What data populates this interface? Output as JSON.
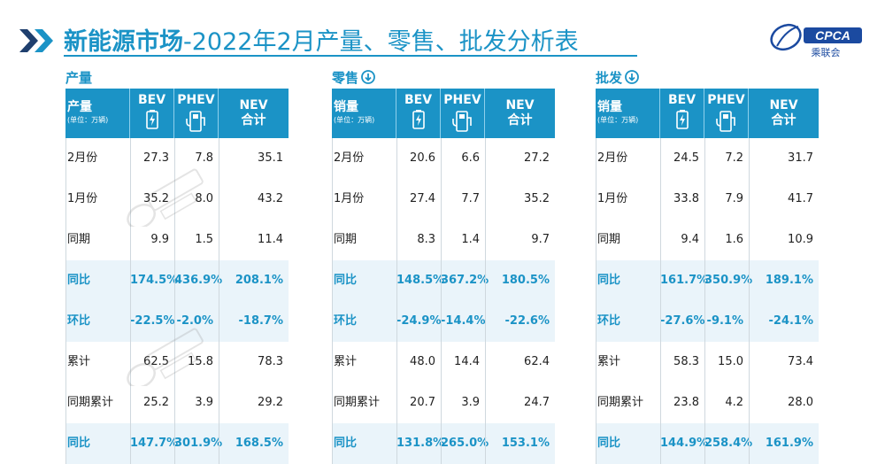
{
  "page": {
    "title_bold": "新能源市场",
    "title_rest": "-2022年2月产量、零售、批发分析表",
    "logo_text": "CPCA",
    "logo_sub": "乘联会",
    "colors": {
      "accent": "#1b93c6",
      "highlight_row": "#eaf4fa",
      "chevron": "#1f3f6e"
    }
  },
  "columns": {
    "bev": "BEV",
    "phev": "PHEV",
    "nev": "NEV",
    "nev_sub": "合计",
    "unit": "(单位：万辆)"
  },
  "sections": [
    {
      "label": "产量",
      "header_label": "产量",
      "has_arrow": false,
      "rows": [
        {
          "label": "2月份",
          "bev": "27.3",
          "phev": "7.8",
          "nev": "35.1",
          "highlight": false
        },
        {
          "label": "1月份",
          "bev": "35.2",
          "phev": "8.0",
          "nev": "43.2",
          "highlight": false
        },
        {
          "label": "同期",
          "bev": "9.9",
          "phev": "1.5",
          "nev": "11.4",
          "highlight": false
        },
        {
          "label": "同比",
          "bev": "174.5%",
          "phev": "436.9%",
          "nev": "208.1%",
          "highlight": true
        },
        {
          "label": "环比",
          "bev": "-22.5%",
          "phev": "-2.0%",
          "nev": "-18.7%",
          "highlight": true
        },
        {
          "label": "累计",
          "bev": "62.5",
          "phev": "15.8",
          "nev": "78.3",
          "highlight": false
        },
        {
          "label": "同期累计",
          "bev": "25.2",
          "phev": "3.9",
          "nev": "29.2",
          "highlight": false
        },
        {
          "label": "同比",
          "bev": "147.7%",
          "phev": "301.9%",
          "nev": "168.5%",
          "highlight": true
        }
      ]
    },
    {
      "label": "零售",
      "header_label": "销量",
      "has_arrow": true,
      "rows": [
        {
          "label": "2月份",
          "bev": "20.6",
          "phev": "6.6",
          "nev": "27.2",
          "highlight": false
        },
        {
          "label": "1月份",
          "bev": "27.4",
          "phev": "7.7",
          "nev": "35.2",
          "highlight": false
        },
        {
          "label": "同期",
          "bev": "8.3",
          "phev": "1.4",
          "nev": "9.7",
          "highlight": false
        },
        {
          "label": "同比",
          "bev": "148.5%",
          "phev": "367.2%",
          "nev": "180.5%",
          "highlight": true
        },
        {
          "label": "环比",
          "bev": "-24.9%",
          "phev": "-14.4%",
          "nev": "-22.6%",
          "highlight": true
        },
        {
          "label": "累计",
          "bev": "48.0",
          "phev": "14.4",
          "nev": "62.4",
          "highlight": false
        },
        {
          "label": "同期累计",
          "bev": "20.7",
          "phev": "3.9",
          "nev": "24.7",
          "highlight": false
        },
        {
          "label": "同比",
          "bev": "131.8%",
          "phev": "265.0%",
          "nev": "153.1%",
          "highlight": true
        }
      ]
    },
    {
      "label": "批发",
      "header_label": "销量",
      "has_arrow": true,
      "rows": [
        {
          "label": "2月份",
          "bev": "24.5",
          "phev": "7.2",
          "nev": "31.7",
          "highlight": false
        },
        {
          "label": "1月份",
          "bev": "33.8",
          "phev": "7.9",
          "nev": "41.7",
          "highlight": false
        },
        {
          "label": "同期",
          "bev": "9.4",
          "phev": "1.6",
          "nev": "10.9",
          "highlight": false
        },
        {
          "label": "同比",
          "bev": "161.7%",
          "phev": "350.9%",
          "nev": "189.1%",
          "highlight": true
        },
        {
          "label": "环比",
          "bev": "-27.6%",
          "phev": "-9.1%",
          "nev": "-24.1%",
          "highlight": true
        },
        {
          "label": "累计",
          "bev": "58.3",
          "phev": "15.0",
          "nev": "73.4",
          "highlight": false
        },
        {
          "label": "同期累计",
          "bev": "23.8",
          "phev": "4.2",
          "nev": "28.0",
          "highlight": false
        },
        {
          "label": "同比",
          "bev": "144.9%",
          "phev": "258.4%",
          "nev": "161.9%",
          "highlight": true
        }
      ]
    }
  ],
  "chart_data": [
    {
      "type": "table",
      "title": "产量",
      "columns": [
        "产量 (单位：万辆)",
        "BEV",
        "PHEV",
        "NEV 合计"
      ],
      "rows": [
        [
          "2月份",
          "27.3",
          "7.8",
          "35.1"
        ],
        [
          "1月份",
          "35.2",
          "8.0",
          "43.2"
        ],
        [
          "同期",
          "9.9",
          "1.5",
          "11.4"
        ],
        [
          "同比",
          "174.5%",
          "436.9%",
          "208.1%"
        ],
        [
          "环比",
          "-22.5%",
          "-2.0%",
          "-18.7%"
        ],
        [
          "累计",
          "62.5",
          "15.8",
          "78.3"
        ],
        [
          "同期累计",
          "25.2",
          "3.9",
          "29.2"
        ],
        [
          "同比",
          "147.7%",
          "301.9%",
          "168.5%"
        ]
      ]
    },
    {
      "type": "table",
      "title": "零售",
      "columns": [
        "销量 (单位：万辆)",
        "BEV",
        "PHEV",
        "NEV 合计"
      ],
      "rows": [
        [
          "2月份",
          "20.6",
          "6.6",
          "27.2"
        ],
        [
          "1月份",
          "27.4",
          "7.7",
          "35.2"
        ],
        [
          "同期",
          "8.3",
          "1.4",
          "9.7"
        ],
        [
          "同比",
          "148.5%",
          "367.2%",
          "180.5%"
        ],
        [
          "环比",
          "-24.9%",
          "-14.4%",
          "-22.6%"
        ],
        [
          "累计",
          "48.0",
          "14.4",
          "62.4"
        ],
        [
          "同期累计",
          "20.7",
          "3.9",
          "24.7"
        ],
        [
          "同比",
          "131.8%",
          "265.0%",
          "153.1%"
        ]
      ]
    },
    {
      "type": "table",
      "title": "批发",
      "columns": [
        "销量 (单位：万辆)",
        "BEV",
        "PHEV",
        "NEV 合计"
      ],
      "rows": [
        [
          "2月份",
          "24.5",
          "7.2",
          "31.7"
        ],
        [
          "1月份",
          "33.8",
          "7.9",
          "41.7"
        ],
        [
          "同期",
          "9.4",
          "1.6",
          "10.9"
        ],
        [
          "同比",
          "161.7%",
          "350.9%",
          "189.1%"
        ],
        [
          "环比",
          "-27.6%",
          "-9.1%",
          "-24.1%"
        ],
        [
          "累计",
          "58.3",
          "15.0",
          "73.4"
        ],
        [
          "同期累计",
          "23.8",
          "4.2",
          "28.0"
        ],
        [
          "同比",
          "144.9%",
          "258.4%",
          "161.9%"
        ]
      ]
    }
  ]
}
